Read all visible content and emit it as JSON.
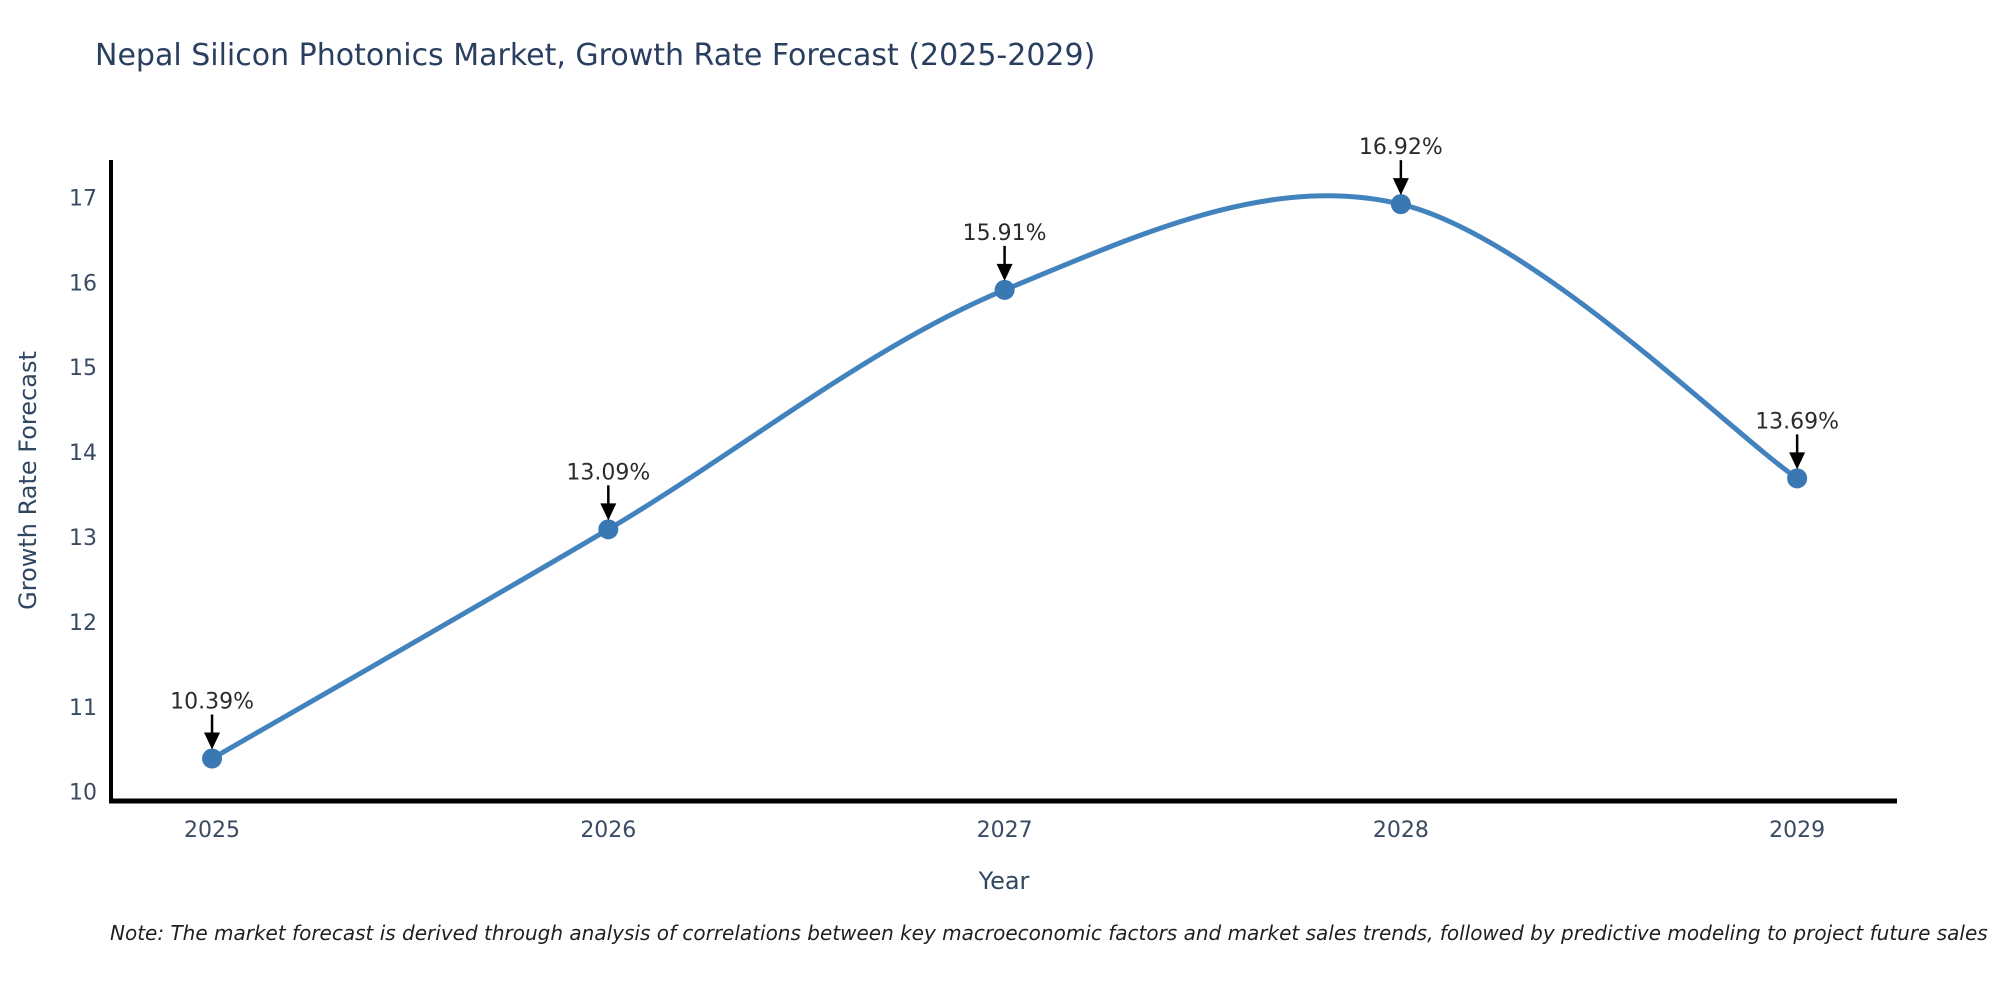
{
  "page": {
    "background": "#ffffff",
    "note": "Note: The market forecast is derived through analysis of correlations between key macroeconomic factors and market sales trends, followed by predictive modeling to project future sales"
  },
  "chart_data": {
    "type": "line",
    "title": "Nepal Silicon Photonics Market, Growth Rate Forecast (2025-2029)",
    "xlabel": "Year",
    "ylabel": "Growth Rate Forecast",
    "x": [
      2025,
      2026,
      2027,
      2028,
      2029
    ],
    "x_tick_labels": [
      "2025",
      "2026",
      "2027",
      "2028",
      "2029"
    ],
    "series": [
      {
        "name": "Growth Rate Forecast",
        "values": [
          10.39,
          13.09,
          15.91,
          16.92,
          13.69
        ]
      }
    ],
    "point_labels": [
      "10.39%",
      "13.09%",
      "15.91%",
      "16.92%",
      "13.69%"
    ],
    "y_ticks": [
      10,
      11,
      12,
      13,
      14,
      15,
      16,
      17
    ],
    "xlim": [
      2024.745,
      2029.252
    ],
    "ylim": [
      9.89,
      17.44
    ],
    "grid": false,
    "legend": "none",
    "smooth": true,
    "annotation_style": "down-arrow-to-point",
    "colors": {
      "line": "#4383bd",
      "marker": "#3a78b4",
      "axis": "#000000",
      "title": "#2a3f5f",
      "tick": "#3b4a63",
      "axis_title": "#2f4761",
      "annotation": "#2b2b2b",
      "arrow": "#000000",
      "note": "#1f1f1f"
    }
  }
}
